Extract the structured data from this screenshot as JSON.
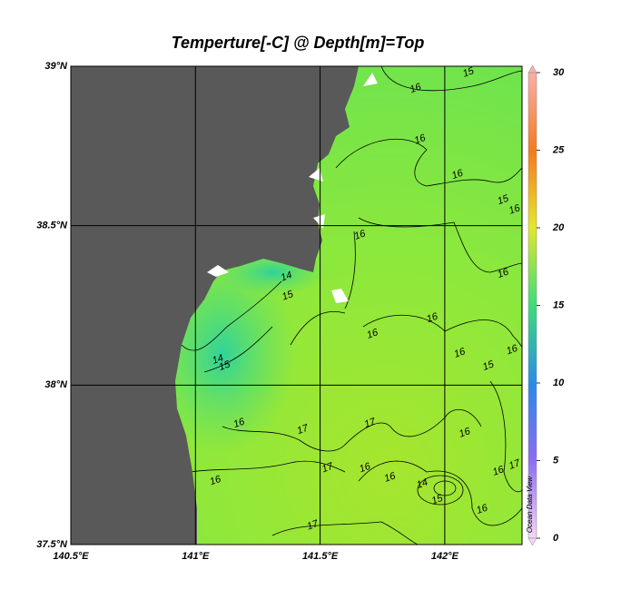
{
  "chart_data": {
    "type": "map",
    "title": "Temperture[-C] @ Depth[m]=Top",
    "xlim": [
      140.5,
      142.31
    ],
    "ylim": [
      37.5,
      39
    ],
    "xticks": [
      {
        "value": 140.5,
        "label": "140.5°E"
      },
      {
        "value": 141,
        "label": "141°E"
      },
      {
        "value": 141.5,
        "label": "141.5°E"
      },
      {
        "value": 142,
        "label": "142°E"
      }
    ],
    "yticks": [
      {
        "value": 37.5,
        "label": "37.5°N"
      },
      {
        "value": 38,
        "label": "38°N"
      },
      {
        "value": 38.5,
        "label": "38.5°N"
      },
      {
        "value": 39,
        "label": "39°N"
      }
    ],
    "grid": true,
    "colorbar": {
      "lim": [
        0,
        30
      ],
      "ticks": [
        0,
        5,
        10,
        15,
        20,
        25,
        30
      ]
    },
    "watermark": "Ocean Data View",
    "contour_labels": [
      {
        "label": 15,
        "lon": 142.095,
        "lat": 38.98
      },
      {
        "label": 16,
        "lon": 141.883,
        "lat": 38.93
      },
      {
        "label": 16,
        "lon": 141.901,
        "lat": 38.77
      },
      {
        "label": 16,
        "lon": 142.051,
        "lat": 38.66
      },
      {
        "label": 15,
        "lon": 142.234,
        "lat": 38.58
      },
      {
        "label": 16,
        "lon": 142.28,
        "lat": 38.55
      },
      {
        "label": 16,
        "lon": 141.66,
        "lat": 38.47
      },
      {
        "label": 16,
        "lon": 142.234,
        "lat": 38.35
      },
      {
        "label": 14,
        "lon": 141.365,
        "lat": 38.34
      },
      {
        "label": 15,
        "lon": 141.37,
        "lat": 38.28
      },
      {
        "label": 16,
        "lon": 141.95,
        "lat": 38.21
      },
      {
        "label": 16,
        "lon": 141.71,
        "lat": 38.16
      },
      {
        "label": 16,
        "lon": 142.06,
        "lat": 38.1
      },
      {
        "label": 16,
        "lon": 142.27,
        "lat": 38.11
      },
      {
        "label": 14,
        "lon": 141.09,
        "lat": 38.08
      },
      {
        "label": 15,
        "lon": 141.117,
        "lat": 38.06
      },
      {
        "label": 15,
        "lon": 142.175,
        "lat": 38.06
      },
      {
        "label": 16,
        "lon": 141.175,
        "lat": 37.88
      },
      {
        "label": 17,
        "lon": 141.43,
        "lat": 37.86
      },
      {
        "label": 17,
        "lon": 141.7,
        "lat": 37.88
      },
      {
        "label": 16,
        "lon": 142.08,
        "lat": 37.85
      },
      {
        "label": 17,
        "lon": 141.53,
        "lat": 37.74
      },
      {
        "label": 16,
        "lon": 141.68,
        "lat": 37.74
      },
      {
        "label": 16,
        "lon": 141.78,
        "lat": 37.71
      },
      {
        "label": 14,
        "lon": 141.91,
        "lat": 37.69
      },
      {
        "label": 15,
        "lon": 141.97,
        "lat": 37.64
      },
      {
        "label": 16,
        "lon": 142.215,
        "lat": 37.73
      },
      {
        "label": 17,
        "lon": 142.28,
        "lat": 37.75
      },
      {
        "label": 16,
        "lon": 141.08,
        "lat": 37.7
      },
      {
        "label": 16,
        "lon": 142.15,
        "lat": 37.61
      },
      {
        "label": 17,
        "lon": 141.47,
        "lat": 37.56
      }
    ]
  }
}
